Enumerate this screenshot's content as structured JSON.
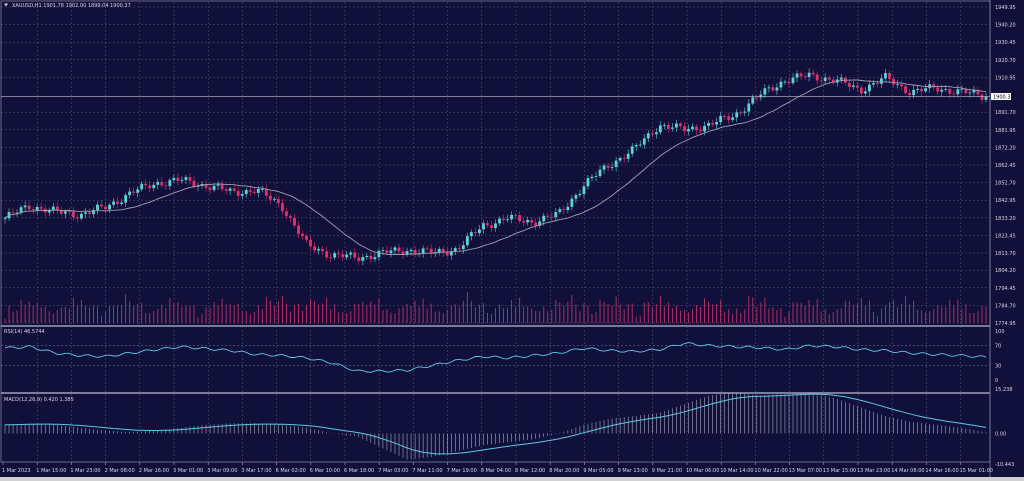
{
  "chart_data": {
    "type": "candlestick",
    "symbol_header": "XAUUSD,H1  1901.78 1902.00 1899.04 1900.37",
    "current_price_label": "1900.37",
    "price_axis_labels": [
      "1949.95",
      "1940.20",
      "1930.45",
      "1920.70",
      "1910.95",
      "1891.70",
      "1881.95",
      "1872.20",
      "1862.45",
      "1852.70",
      "1842.95",
      "1833.20",
      "1823.45",
      "1813.70",
      "1804.20",
      "1794.45",
      "1784.70",
      "1774.95"
    ],
    "ylim": [
      1774.95,
      1949.95
    ],
    "close_path": [
      1833,
      1840,
      1836.5,
      1835,
      1839,
      1847,
      1852.5,
      1854,
      1851,
      1847.5,
      1848.5,
      1840,
      1818,
      1812.6,
      1811,
      1813.7,
      1815.4,
      1813.7,
      1816,
      1829,
      1833,
      1831,
      1835,
      1851,
      1862.5,
      1870.8,
      1884.6,
      1882,
      1884.6,
      1890,
      1901,
      1909.5,
      1912,
      1909.5,
      1904,
      1910.6,
      1903,
      1905,
      1903,
      1900.37
    ],
    "colors": {
      "background": "#10103a",
      "bull": "#5fd3d3",
      "bear": "#e0306e",
      "ma": "#a0a0b0",
      "volume": "#c0306a",
      "grid": "#5a5a7a",
      "indicator": "#5fc8e0"
    },
    "rsi": {
      "header": "RSI(14) 46.5744",
      "axis_labels": [
        "100",
        "70",
        "30",
        "0"
      ],
      "levels": [
        70,
        30
      ],
      "values": [
        65,
        68,
        55,
        50,
        48,
        55,
        62,
        68,
        64,
        60,
        52,
        50,
        45,
        35,
        18,
        18,
        20,
        30,
        40,
        48,
        45,
        50,
        55,
        65,
        60,
        58,
        62,
        75,
        70,
        68,
        66,
        62,
        70,
        68,
        62,
        60,
        55,
        52,
        50,
        46.57
      ]
    },
    "macd": {
      "header": "MACD(12,26,9) 0.420 1.385",
      "axis_labels": [
        "15.238",
        "0.00",
        "-10.443"
      ],
      "ylim": [
        -10.443,
        15.238
      ],
      "histogram": [
        3,
        3.5,
        3,
        2,
        1,
        0.5,
        1,
        2,
        3,
        3.5,
        3.5,
        3,
        2,
        0,
        -1,
        -5,
        -9,
        -8,
        -6,
        -4,
        -3,
        -2,
        0,
        3,
        5,
        6,
        7,
        10,
        13,
        14,
        13,
        13.5,
        14,
        12,
        9,
        6,
        4,
        3,
        2,
        0.42
      ]
    },
    "time_axis_labels": [
      "1 Mar 2023",
      "1 Mar 15:00",
      "1 Mar 23:00",
      "2 Mar 08:00",
      "2 Mar 16:00",
      "3 Mar 01:00",
      "3 Mar 09:00",
      "3 Mar 17:00",
      "6 Mar 02:00",
      "6 Mar 10:00",
      "6 Mar 18:00",
      "7 Mar 03:00",
      "7 Mar 11:00",
      "7 Mar 19:00",
      "8 Mar 04:00",
      "8 Mar 12:00",
      "8 Mar 20:00",
      "9 Mar 05:00",
      "9 Mar 13:00",
      "9 Mar 21:00",
      "10 Mar 06:00",
      "10 Mar 14:00",
      "10 Mar 22:00",
      "13 Mar 07:00",
      "13 Mar 15:00",
      "13 Mar 23:00",
      "14 Mar 08:00",
      "14 Mar 16:00",
      "15 Mar 01:00"
    ]
  }
}
